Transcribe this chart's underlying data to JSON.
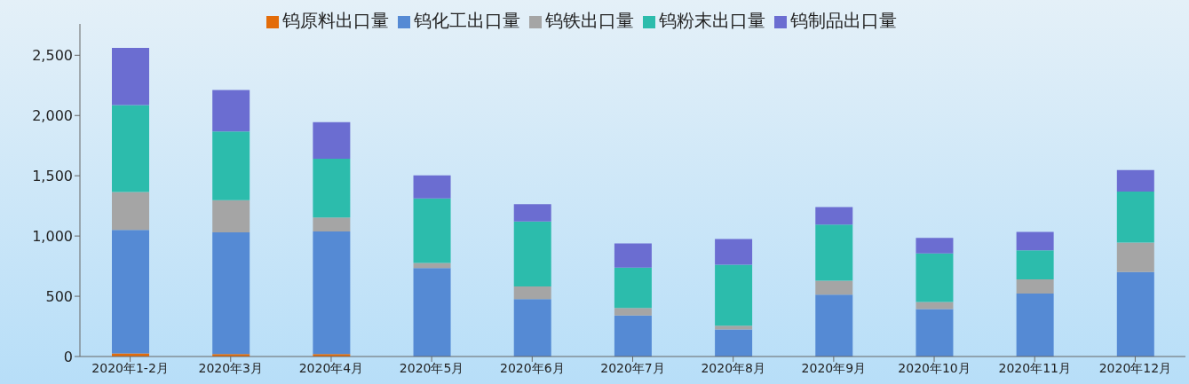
{
  "chart_data": {
    "type": "bar",
    "stacked": true,
    "categories": [
      "2020年1-2月",
      "2020年3月",
      "2020年4月",
      "2020年5月",
      "2020年6月",
      "2020年7月",
      "2020年8月",
      "2020年9月",
      "2020年10月",
      "2020年11月",
      "2020年12月"
    ],
    "series": [
      {
        "name": "钨原料出口量",
        "color": "#e36c0a",
        "values": [
          25,
          20,
          20,
          0,
          0,
          0,
          0,
          0,
          0,
          0,
          0
        ]
      },
      {
        "name": "钨化工出口量",
        "color": "#558ad4",
        "values": [
          1025,
          1010,
          1017,
          735,
          476,
          341,
          224,
          513,
          394,
          522,
          701
        ]
      },
      {
        "name": "钨铁出口量",
        "color": "#a5a5a5",
        "values": [
          316,
          268,
          117,
          41,
          106,
          62,
          32,
          117,
          59,
          119,
          245
        ]
      },
      {
        "name": "钨粉末出口量",
        "color": "#2cbcac",
        "values": [
          721,
          570,
          487,
          536,
          538,
          334,
          506,
          464,
          403,
          240,
          423
        ]
      },
      {
        "name": "钨制品出口量",
        "color": "#6b6dd1",
        "values": [
          474,
          344,
          303,
          192,
          144,
          202,
          213,
          147,
          128,
          154,
          178
        ]
      }
    ],
    "ylim": [
      0,
      2760
    ],
    "yticks": [
      0,
      {
        "value": 500,
        "label": "500"
      },
      {
        "value": 1000,
        "label": "1,000"
      },
      {
        "value": 1500,
        "label": "1,500"
      },
      {
        "value": 2000,
        "label": "2,000"
      },
      {
        "value": 2500,
        "label": "2,500"
      }
    ],
    "grid": false,
    "legend": "top"
  }
}
